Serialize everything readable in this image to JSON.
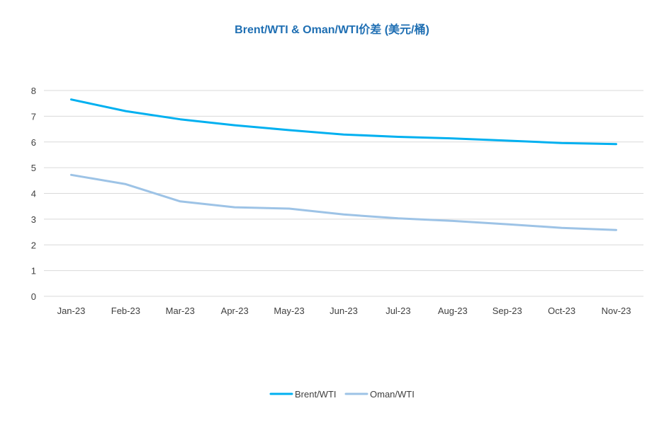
{
  "chart_data": {
    "type": "line",
    "title": "Brent/WTI & Oman/WTI价差 (美元/桶)",
    "xlabel": "",
    "ylabel": "",
    "categories": [
      "Jan-23",
      "Feb-23",
      "Mar-23",
      "Apr-23",
      "May-23",
      "Jun-23",
      "Jul-23",
      "Aug-23",
      "Sep-23",
      "Oct-23",
      "Nov-23"
    ],
    "ylim": [
      0,
      8
    ],
    "yticks": [
      "0",
      "1",
      "2",
      "3",
      "4",
      "5",
      "6",
      "7",
      "8"
    ],
    "grid": true,
    "legend_position": "bottom",
    "series": [
      {
        "name": "Brent/WTI",
        "color": "#00b0f0",
        "values": [
          7.65,
          7.2,
          6.88,
          6.65,
          6.46,
          6.29,
          6.2,
          6.14,
          6.05,
          5.96,
          5.92
        ]
      },
      {
        "name": "Oman/WTI",
        "color": "#9dc3e6",
        "values": [
          4.72,
          4.36,
          3.69,
          3.46,
          3.41,
          3.18,
          3.03,
          2.93,
          2.8,
          2.66,
          2.58
        ]
      }
    ]
  }
}
